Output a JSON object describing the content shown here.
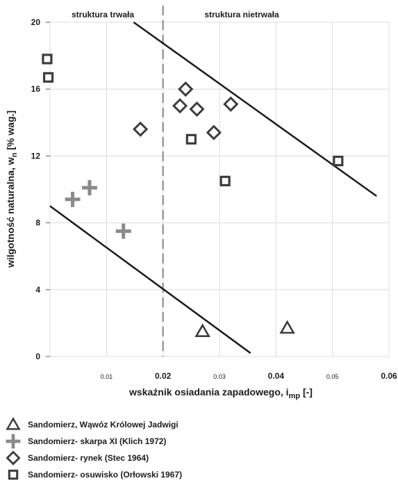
{
  "chart_data": {
    "type": "scatter",
    "xlabel_main": "wskaźnik osiadania zapadowego, i",
    "xlabel_sub": "mp",
    "xlabel_tail": " [-]",
    "ylabel_main": "wilgotność naturalna, w",
    "ylabel_sub": "n",
    "ylabel_tail": " [% wag.]",
    "xlim": [
      0,
      0.06
    ],
    "ylim": [
      0,
      20
    ],
    "x_ticks": [
      {
        "label": "0.01",
        "value": 0.01,
        "bold": false
      },
      {
        "label": "0.02",
        "value": 0.02,
        "bold": true
      },
      {
        "label": "0.03",
        "value": 0.03,
        "bold": false
      },
      {
        "label": "0.04",
        "value": 0.04,
        "bold": true
      },
      {
        "label": "0.05",
        "value": 0.05,
        "bold": false
      },
      {
        "label": "0.06",
        "value": 0.06,
        "bold": true
      }
    ],
    "y_ticks": [
      {
        "label": "0",
        "value": 0
      },
      {
        "label": "4",
        "value": 4
      },
      {
        "label": "8",
        "value": 8
      },
      {
        "label": "12",
        "value": 12
      },
      {
        "label": "16",
        "value": 16
      },
      {
        "label": "20",
        "value": 20
      }
    ],
    "grid": true,
    "vertical_line": {
      "x": 0.02,
      "style": "dashed"
    },
    "region_labels": {
      "left": "struktura trwała",
      "right": "struktura nietrwała"
    },
    "boundary_lines": [
      {
        "x1": 0.0,
        "y1": 9.0,
        "x2": 0.0355,
        "y2": 0.2
      },
      {
        "x1": 0.0148,
        "y1": 20.0,
        "x2": 0.0578,
        "y2": 9.6
      }
    ],
    "series": [
      {
        "name": "Sandomierz, Wąwóz Królowej Jadwigi",
        "marker": "triangle",
        "points": [
          {
            "x": 0.027,
            "y": 1.5
          },
          {
            "x": 0.042,
            "y": 1.7
          }
        ]
      },
      {
        "name": "Sandomierz- skarpa XI (Klich 1972)",
        "marker": "plus",
        "points": [
          {
            "x": 0.004,
            "y": 9.4
          },
          {
            "x": 0.007,
            "y": 10.1
          },
          {
            "x": 0.013,
            "y": 7.5
          }
        ]
      },
      {
        "name": "Sandomierz- rynek (Stec 1964)",
        "marker": "diamond",
        "points": [
          {
            "x": 0.016,
            "y": 13.6
          },
          {
            "x": 0.023,
            "y": 15.0
          },
          {
            "x": 0.024,
            "y": 16.0
          },
          {
            "x": 0.026,
            "y": 14.8
          },
          {
            "x": 0.029,
            "y": 13.4
          },
          {
            "x": 0.032,
            "y": 15.1
          }
        ]
      },
      {
        "name": "Sandomierz- osuwisko (Orłowski 1967)",
        "marker": "square",
        "points": [
          {
            "x": -0.0005,
            "y": 17.8
          },
          {
            "x": -0.0003,
            "y": 16.7
          },
          {
            "x": 0.025,
            "y": 13.0
          },
          {
            "x": 0.031,
            "y": 10.5
          },
          {
            "x": 0.051,
            "y": 11.7
          }
        ]
      }
    ],
    "colors": {
      "marker": "#3d3d3d",
      "plus": "#8a8a8a",
      "line": "#1a1a1a",
      "grid": "#dcdcdc",
      "dashed": "#9a9a9a"
    }
  }
}
